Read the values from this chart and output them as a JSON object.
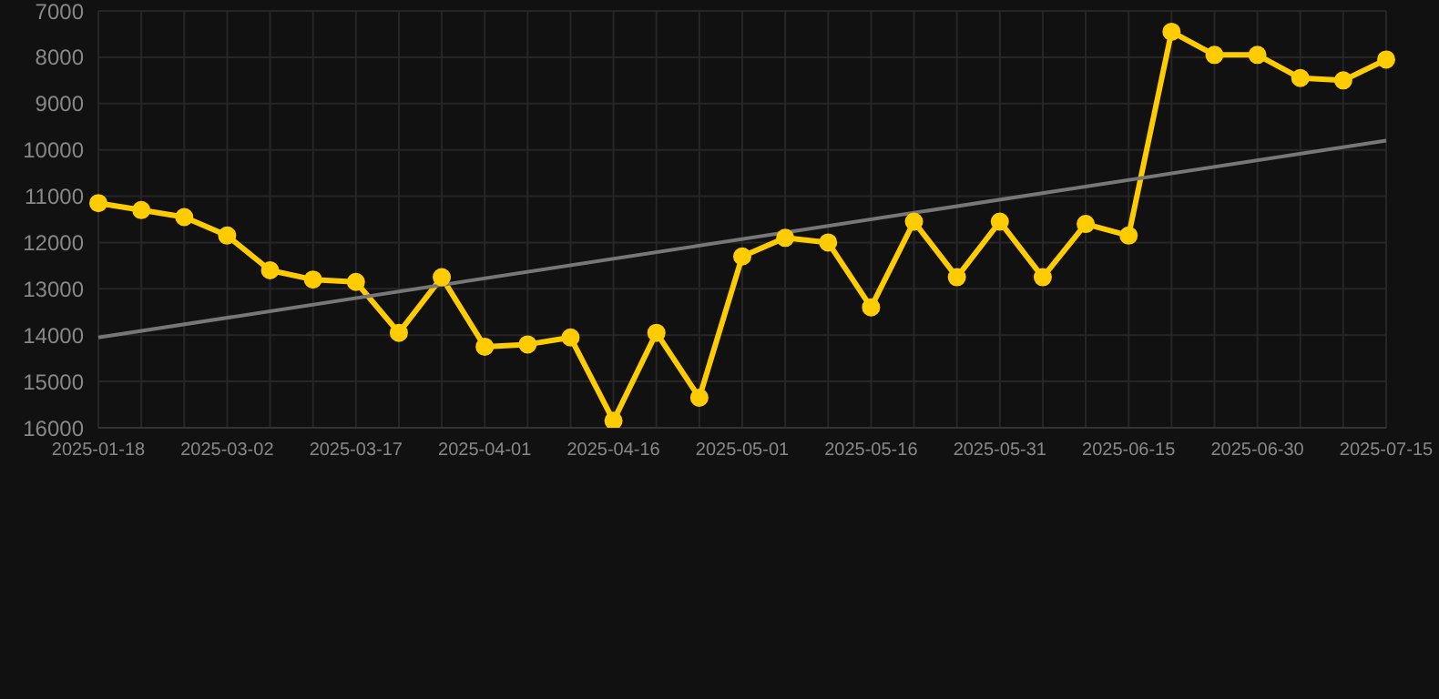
{
  "chart_data": {
    "type": "line",
    "categories": [
      "2025-01-18",
      null,
      null,
      "2025-03-02",
      null,
      null,
      "2025-03-17",
      null,
      null,
      "2025-04-01",
      null,
      null,
      "2025-04-16",
      null,
      null,
      "2025-05-01",
      null,
      null,
      "2025-05-16",
      null,
      null,
      "2025-05-31",
      null,
      null,
      "2025-06-15",
      null,
      null,
      "2025-06-30",
      null,
      null,
      "2025-07-15"
    ],
    "series": [
      {
        "color": "#ffcc00",
        "marker": "circle",
        "values": [
          11150,
          11300,
          11450,
          11850,
          12600,
          12800,
          12850,
          13950,
          12750,
          14250,
          14200,
          14050,
          15850,
          13950,
          15350,
          12300,
          11900,
          12000,
          13400,
          11550,
          12750,
          11550,
          12750,
          11600,
          11850,
          7450,
          7950,
          7950,
          8450,
          8500,
          8050
        ]
      },
      {
        "type": "line",
        "color": "#777777",
        "marker": "none",
        "values": [
          14050,
          null,
          null,
          null,
          null,
          null,
          null,
          null,
          null,
          null,
          null,
          null,
          null,
          null,
          null,
          null,
          null,
          null,
          null,
          null,
          null,
          null,
          null,
          null,
          null,
          null,
          null,
          null,
          null,
          null,
          9800
        ]
      }
    ],
    "ylim": [
      16000,
      7000
    ],
    "yticks": [
      7000,
      8000,
      9000,
      10000,
      11000,
      12000,
      13000,
      14000,
      15000,
      16000
    ],
    "grid": true,
    "legend": false
  }
}
